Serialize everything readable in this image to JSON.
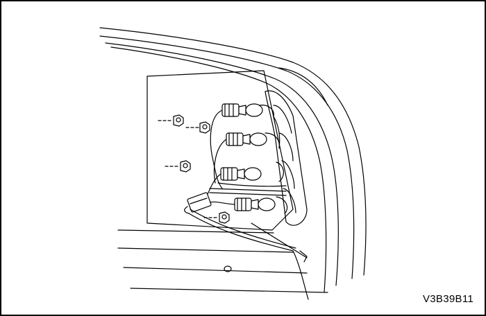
{
  "figure": {
    "code": "V3B39B11",
    "line_color": "#000000",
    "background": "#ffffff"
  }
}
